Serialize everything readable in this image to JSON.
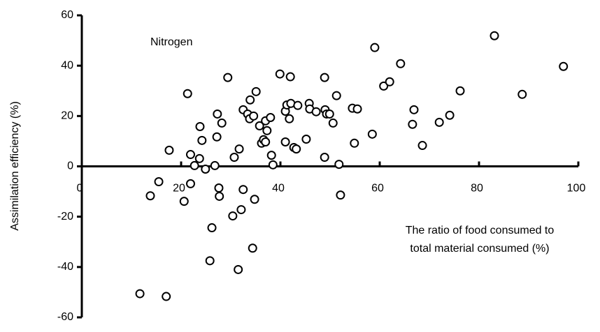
{
  "chart_data": {
    "type": "scatter",
    "ylabel": "Assimilation efficiency (%)",
    "xlabel": [
      "The ratio of food consumed to",
      "total material consumed (%)"
    ],
    "annotation": "Nitrogen",
    "xlim": [
      0,
      100
    ],
    "xticks": [
      0,
      20,
      40,
      60,
      80,
      100
    ],
    "ylim": [
      -60,
      60
    ],
    "yticks": [
      -60,
      -40,
      -20,
      0,
      20,
      40,
      60
    ],
    "grid": false,
    "color": "#000000",
    "x": [
      13.8,
      15.5,
      11.7,
      17.0,
      17.6,
      20.6,
      21.3,
      21.9,
      21.9,
      22.7,
      23.7,
      23.8,
      24.2,
      24.9,
      26.2,
      25.8,
      26.8,
      27.2,
      27.3,
      27.6,
      27.7,
      28.2,
      29.4,
      30.4,
      30.7,
      31.7,
      32.1,
      31.5,
      32.5,
      32.5,
      33.4,
      33.9,
      33.8,
      34.4,
      34.6,
      34.8,
      35.1,
      35.8,
      36.2,
      36.6,
      37.0,
      37.3,
      37.0,
      38.0,
      38.2,
      38.5,
      39.9,
      41.0,
      41.0,
      41.3,
      41.8,
      42.0,
      42.1,
      42.7,
      43.2,
      43.5,
      45.2,
      45.8,
      45.9,
      47.2,
      48.9,
      48.9,
      49.0,
      49.3,
      49.9,
      50.6,
      51.3,
      51.8,
      52.1,
      54.5,
      54.9,
      55.5,
      58.5,
      59.0,
      60.8,
      62.0,
      64.2,
      66.6,
      66.9,
      68.6,
      72.0,
      74.1,
      76.2,
      83.1,
      88.7,
      97.0
    ],
    "y": [
      -11.7,
      -6.1,
      -50.6,
      -51.7,
      6.4,
      -13.9,
      28.9,
      4.7,
      -6.9,
      0.3,
      3.1,
      15.8,
      10.3,
      -1.1,
      -24.4,
      -37.5,
      0.3,
      11.7,
      20.8,
      -8.6,
      -11.9,
      17.2,
      35.3,
      -19.7,
      3.6,
      6.9,
      -17.2,
      -41.0,
      -9.2,
      22.5,
      20.8,
      26.4,
      18.9,
      -32.5,
      20.0,
      -13.1,
      29.7,
      16.1,
      9.2,
      10.6,
      18.1,
      14.2,
      9.7,
      19.4,
      4.4,
      0.6,
      36.7,
      21.9,
      9.7,
      24.4,
      18.9,
      35.6,
      25.0,
      7.5,
      6.9,
      24.2,
      10.8,
      25.0,
      22.8,
      21.7,
      35.3,
      3.6,
      22.5,
      20.8,
      20.8,
      17.2,
      28.1,
      0.8,
      -11.4,
      23.1,
      9.2,
      22.8,
      12.8,
      47.2,
      31.9,
      33.6,
      40.8,
      16.7,
      22.5,
      8.3,
      17.5,
      20.3,
      30.0,
      51.9,
      28.6,
      39.7
    ]
  }
}
